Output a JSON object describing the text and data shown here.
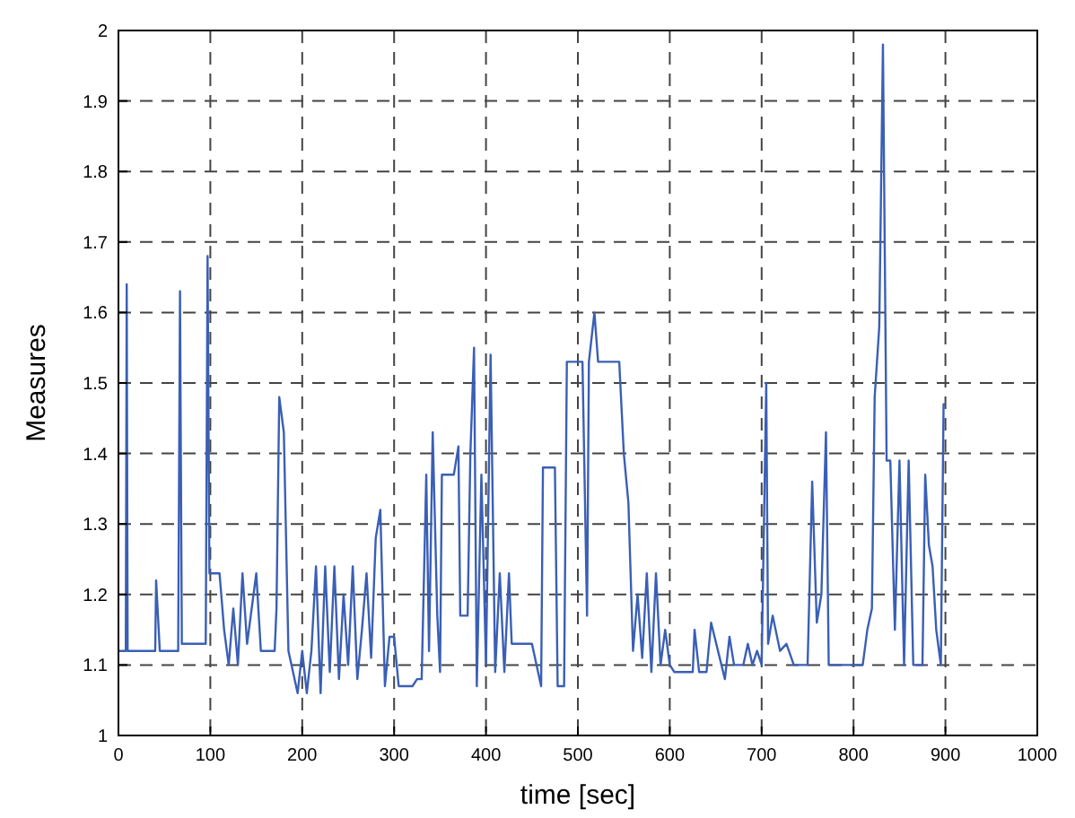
{
  "chart_data": {
    "type": "line",
    "xlabel": "time [sec]",
    "ylabel": "Measures",
    "xlim": [
      0,
      1000
    ],
    "xticks": [
      0,
      100,
      200,
      300,
      400,
      500,
      600,
      700,
      800,
      900,
      1000
    ],
    "ylim": [
      1,
      2
    ],
    "yticks": [
      1,
      1.1,
      1.2,
      1.3,
      1.4,
      1.5,
      1.6,
      1.7,
      1.8,
      1.9,
      2
    ],
    "grid": true,
    "line_style": "solid",
    "series": [
      {
        "color": "#3a5fb5",
        "x": [
          0,
          8,
          9,
          10,
          40,
          41,
          45,
          65,
          67,
          69,
          95,
          97,
          99,
          110,
          115,
          120,
          125,
          130,
          135,
          140,
          150,
          155,
          170,
          172,
          175,
          180,
          185,
          195,
          200,
          205,
          210,
          215,
          220,
          225,
          230,
          235,
          240,
          245,
          250,
          255,
          260,
          265,
          270,
          275,
          280,
          285,
          290,
          295,
          300,
          305,
          320,
          325,
          330,
          335,
          338,
          342,
          347,
          350,
          352,
          365,
          370,
          372,
          380,
          383,
          387,
          390,
          395,
          400,
          405,
          410,
          415,
          420,
          425,
          428,
          440,
          450,
          460,
          462,
          475,
          478,
          485,
          488,
          505,
          510,
          512,
          518,
          522,
          545,
          550,
          555,
          560,
          565,
          570,
          575,
          580,
          585,
          590,
          595,
          600,
          605,
          625,
          627,
          632,
          640,
          645,
          660,
          665,
          670,
          680,
          685,
          690,
          695,
          700,
          705,
          707,
          712,
          720,
          727,
          735,
          750,
          755,
          760,
          765,
          770,
          773,
          810,
          815,
          820,
          823,
          828,
          832,
          836,
          840,
          845,
          850,
          855,
          860,
          865,
          875,
          878,
          882,
          886,
          890,
          895,
          898,
          900
        ],
        "values": [
          1.12,
          1.12,
          1.64,
          1.12,
          1.12,
          1.22,
          1.12,
          1.12,
          1.63,
          1.13,
          1.13,
          1.68,
          1.23,
          1.23,
          1.15,
          1.1,
          1.18,
          1.1,
          1.23,
          1.13,
          1.23,
          1.12,
          1.12,
          1.18,
          1.48,
          1.43,
          1.12,
          1.06,
          1.12,
          1.06,
          1.12,
          1.24,
          1.06,
          1.24,
          1.09,
          1.24,
          1.08,
          1.2,
          1.1,
          1.24,
          1.08,
          1.15,
          1.23,
          1.11,
          1.28,
          1.32,
          1.07,
          1.14,
          1.14,
          1.07,
          1.07,
          1.08,
          1.08,
          1.37,
          1.12,
          1.43,
          1.17,
          1.09,
          1.37,
          1.37,
          1.41,
          1.17,
          1.17,
          1.4,
          1.55,
          1.07,
          1.37,
          1.1,
          1.54,
          1.09,
          1.23,
          1.09,
          1.23,
          1.13,
          1.13,
          1.13,
          1.07,
          1.38,
          1.38,
          1.07,
          1.07,
          1.53,
          1.53,
          1.17,
          1.53,
          1.6,
          1.53,
          1.53,
          1.4,
          1.33,
          1.12,
          1.2,
          1.11,
          1.23,
          1.09,
          1.23,
          1.1,
          1.15,
          1.1,
          1.09,
          1.09,
          1.15,
          1.09,
          1.09,
          1.16,
          1.08,
          1.14,
          1.1,
          1.1,
          1.13,
          1.1,
          1.12,
          1.1,
          1.5,
          1.13,
          1.17,
          1.12,
          1.13,
          1.1,
          1.1,
          1.36,
          1.16,
          1.2,
          1.43,
          1.1,
          1.1,
          1.15,
          1.18,
          1.48,
          1.58,
          1.98,
          1.39,
          1.39,
          1.15,
          1.39,
          1.1,
          1.39,
          1.1,
          1.1,
          1.37,
          1.27,
          1.24,
          1.15,
          1.1,
          1.47,
          1.47
        ]
      }
    ]
  }
}
